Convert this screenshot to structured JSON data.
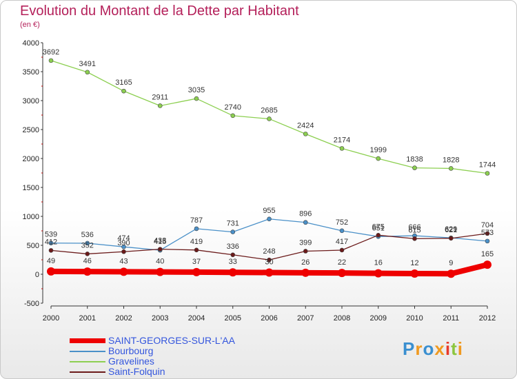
{
  "title": "Evolution du Montant de la Dette par Habitant",
  "subtitle": "(en €)",
  "logo": {
    "text": "Proxiti",
    "letters": [
      "P",
      "r",
      "o",
      "x",
      "i",
      "t",
      "i"
    ],
    "colors": [
      "#3a8fd0",
      "#f09a20",
      "#3a8fd0",
      "#f09a20",
      "#e83a2a",
      "#8cc63f",
      "#f09a20"
    ]
  },
  "chart_data": {
    "type": "line",
    "x": [
      2000,
      2001,
      2002,
      2003,
      2004,
      2005,
      2006,
      2007,
      2008,
      2009,
      2010,
      2011,
      2012
    ],
    "ylim": [
      -500,
      4000
    ],
    "yticks": [
      -500,
      0,
      500,
      1000,
      1500,
      2000,
      2500,
      3000,
      3500,
      4000
    ],
    "legend_position": "bottom-left",
    "series": [
      {
        "name": "SAINT-GEORGES-SUR-L'AA",
        "color": "#ee0000",
        "width": 8,
        "radius": 6,
        "values": [
          49,
          46,
          43,
          40,
          37,
          33,
          30,
          26,
          22,
          16,
          12,
          9,
          165
        ]
      },
      {
        "name": "Bourbourg",
        "color": "#4a90c8",
        "width": 1.3,
        "radius": 3,
        "values": [
          539,
          536,
          474,
          415,
          787,
          731,
          955,
          896,
          752,
          651,
          666,
          629,
          573
        ]
      },
      {
        "name": "Gravelines",
        "color": "#8ccf50",
        "width": 1.3,
        "radius": 3,
        "values": [
          3692,
          3491,
          3165,
          2911,
          3035,
          2740,
          2685,
          2424,
          2174,
          1999,
          1838,
          1828,
          1744
        ]
      },
      {
        "name": "Saint-Folquin",
        "color": "#6b1a1a",
        "width": 1.3,
        "radius": 3,
        "values": [
          412,
          352,
          390,
          433,
          419,
          336,
          248,
          399,
          417,
          675,
          615,
          621,
          704
        ]
      }
    ]
  }
}
